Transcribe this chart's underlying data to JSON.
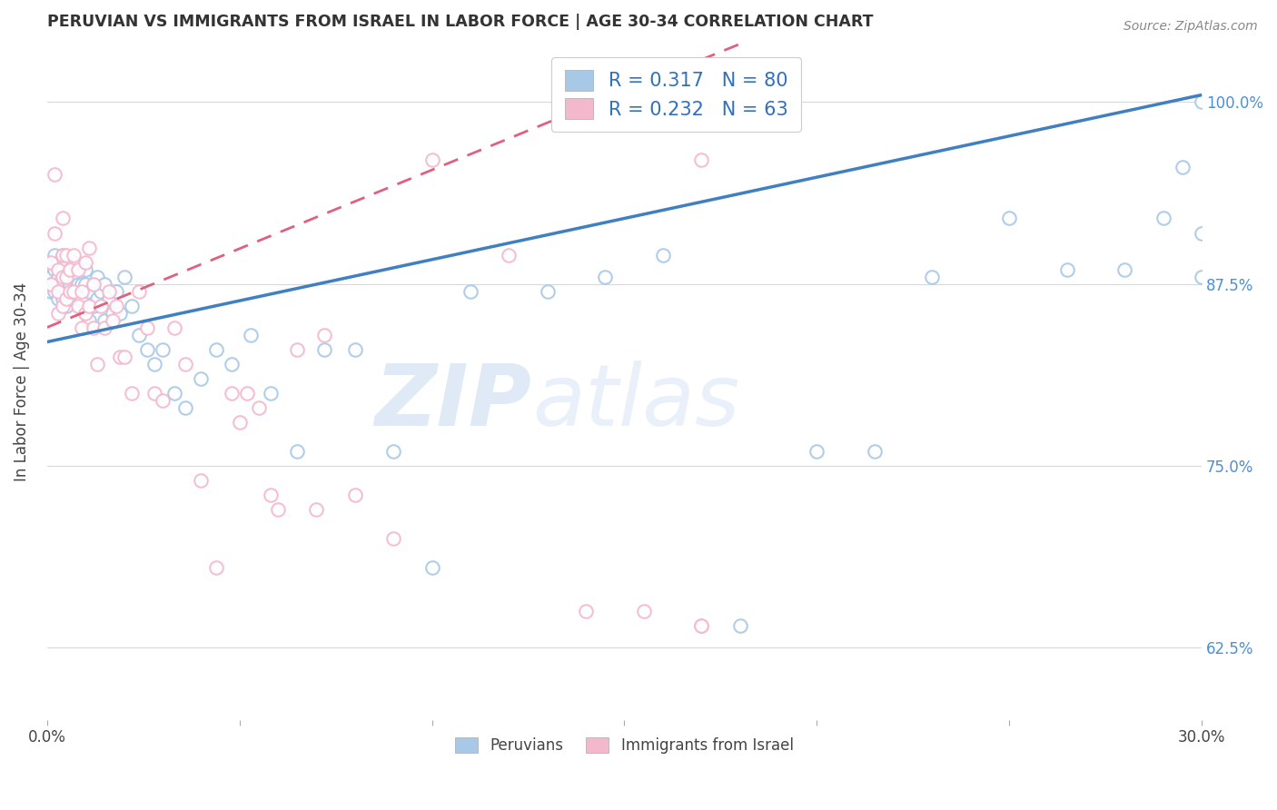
{
  "title": "PERUVIAN VS IMMIGRANTS FROM ISRAEL IN LABOR FORCE | AGE 30-34 CORRELATION CHART",
  "source": "Source: ZipAtlas.com",
  "ylabel": "In Labor Force | Age 30-34",
  "right_yticks": [
    "62.5%",
    "75.0%",
    "87.5%",
    "100.0%"
  ],
  "right_ytick_vals": [
    0.625,
    0.75,
    0.875,
    1.0
  ],
  "blue_R": 0.317,
  "blue_N": 80,
  "pink_R": 0.232,
  "pink_N": 63,
  "blue_color": "#a8c8e8",
  "pink_color": "#f4b8cc",
  "blue_line_color": "#4080c0",
  "pink_line_color": "#e06080",
  "legend_label_blue": "Peruvians",
  "legend_label_pink": "Immigrants from Israel",
  "watermark_zip": "ZIP",
  "watermark_atlas": "atlas",
  "xlim": [
    0.0,
    0.3
  ],
  "ylim": [
    0.575,
    1.04
  ],
  "grid_color": "#d8d8d8",
  "background_color": "#ffffff",
  "blue_line_x0": 0.0,
  "blue_line_y0": 0.835,
  "blue_line_x1": 0.3,
  "blue_line_y1": 1.005,
  "pink_line_x0": 0.0,
  "pink_line_y0": 0.845,
  "pink_line_x1": 0.18,
  "pink_line_y1": 1.04,
  "blue_points_x": [
    0.001,
    0.001,
    0.001,
    0.002,
    0.002,
    0.002,
    0.002,
    0.003,
    0.003,
    0.003,
    0.003,
    0.004,
    0.004,
    0.004,
    0.004,
    0.005,
    0.005,
    0.005,
    0.005,
    0.006,
    0.006,
    0.006,
    0.007,
    0.007,
    0.007,
    0.008,
    0.008,
    0.008,
    0.009,
    0.009,
    0.01,
    0.01,
    0.01,
    0.011,
    0.011,
    0.012,
    0.012,
    0.013,
    0.013,
    0.014,
    0.015,
    0.015,
    0.016,
    0.017,
    0.018,
    0.019,
    0.02,
    0.022,
    0.024,
    0.026,
    0.028,
    0.03,
    0.033,
    0.036,
    0.04,
    0.044,
    0.048,
    0.053,
    0.058,
    0.065,
    0.072,
    0.08,
    0.09,
    0.1,
    0.11,
    0.13,
    0.145,
    0.16,
    0.18,
    0.2,
    0.215,
    0.23,
    0.25,
    0.265,
    0.28,
    0.29,
    0.295,
    0.3,
    0.3,
    0.3
  ],
  "blue_points_y": [
    0.88,
    0.875,
    0.87,
    0.895,
    0.885,
    0.875,
    0.87,
    0.89,
    0.88,
    0.875,
    0.865,
    0.895,
    0.885,
    0.875,
    0.865,
    0.89,
    0.88,
    0.87,
    0.86,
    0.885,
    0.875,
    0.865,
    0.89,
    0.88,
    0.87,
    0.88,
    0.875,
    0.865,
    0.875,
    0.865,
    0.885,
    0.875,
    0.855,
    0.87,
    0.85,
    0.875,
    0.86,
    0.88,
    0.865,
    0.87,
    0.875,
    0.85,
    0.865,
    0.855,
    0.87,
    0.855,
    0.88,
    0.86,
    0.84,
    0.83,
    0.82,
    0.83,
    0.8,
    0.79,
    0.81,
    0.83,
    0.82,
    0.84,
    0.8,
    0.76,
    0.83,
    0.83,
    0.76,
    0.68,
    0.87,
    0.87,
    0.88,
    0.895,
    0.64,
    0.76,
    0.76,
    0.88,
    0.92,
    0.885,
    0.885,
    0.92,
    0.955,
    0.91,
    1.0,
    0.88
  ],
  "pink_points_x": [
    0.001,
    0.001,
    0.002,
    0.002,
    0.003,
    0.003,
    0.003,
    0.004,
    0.004,
    0.004,
    0.004,
    0.005,
    0.005,
    0.005,
    0.006,
    0.006,
    0.007,
    0.007,
    0.008,
    0.008,
    0.009,
    0.009,
    0.01,
    0.01,
    0.011,
    0.011,
    0.012,
    0.012,
    0.013,
    0.014,
    0.015,
    0.016,
    0.017,
    0.018,
    0.019,
    0.02,
    0.022,
    0.024,
    0.026,
    0.028,
    0.03,
    0.033,
    0.036,
    0.04,
    0.044,
    0.048,
    0.052,
    0.058,
    0.065,
    0.072,
    0.08,
    0.09,
    0.1,
    0.12,
    0.14,
    0.155,
    0.17,
    0.17,
    0.17,
    0.05,
    0.055,
    0.06,
    0.07
  ],
  "pink_points_y": [
    0.89,
    0.875,
    0.95,
    0.91,
    0.885,
    0.87,
    0.855,
    0.92,
    0.895,
    0.88,
    0.86,
    0.895,
    0.88,
    0.865,
    0.885,
    0.87,
    0.895,
    0.87,
    0.885,
    0.86,
    0.845,
    0.87,
    0.89,
    0.855,
    0.9,
    0.86,
    0.875,
    0.845,
    0.82,
    0.86,
    0.845,
    0.87,
    0.85,
    0.86,
    0.825,
    0.825,
    0.8,
    0.87,
    0.845,
    0.8,
    0.795,
    0.845,
    0.82,
    0.74,
    0.68,
    0.8,
    0.8,
    0.73,
    0.83,
    0.84,
    0.73,
    0.7,
    0.96,
    0.895,
    0.65,
    0.65,
    0.96,
    0.64,
    0.64,
    0.78,
    0.79,
    0.72,
    0.72
  ]
}
